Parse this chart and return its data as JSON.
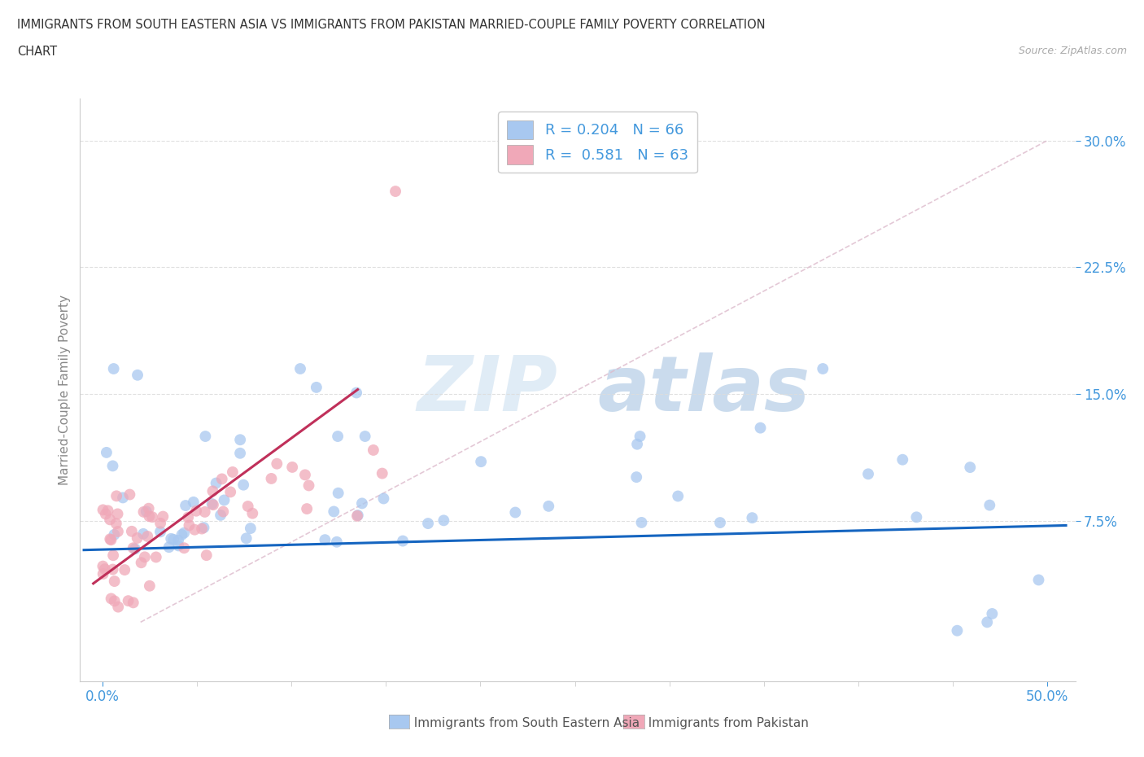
{
  "title_line1": "IMMIGRANTS FROM SOUTH EASTERN ASIA VS IMMIGRANTS FROM PAKISTAN MARRIED-COUPLE FAMILY POVERTY CORRELATION",
  "title_line2": "CHART",
  "source": "Source: ZipAtlas.com",
  "ylabel": "Married-Couple Family Poverty",
  "xlim": [
    0.0,
    0.5
  ],
  "ylim": [
    0.0,
    0.32
  ],
  "yticks": [
    0.075,
    0.15,
    0.225,
    0.3
  ],
  "yticklabels": [
    "7.5%",
    "15.0%",
    "22.5%",
    "30.0%"
  ],
  "xtick_positions": [
    0.0,
    0.5
  ],
  "xticklabels": [
    "0.0%",
    "50.0%"
  ],
  "blue_R": 0.204,
  "blue_N": 66,
  "pink_R": 0.581,
  "pink_N": 63,
  "blue_color": "#A8C8F0",
  "pink_color": "#F0A8B8",
  "blue_line_color": "#1565C0",
  "pink_line_color": "#C0305A",
  "diag_line_color": "#DDBBCC",
  "watermark_color": "#D8E8F8",
  "watermark_color2": "#C8D8E8",
  "legend_label_blue": "Immigrants from South Eastern Asia",
  "legend_label_pink": "Immigrants from Pakistan",
  "background_color": "#FFFFFF",
  "grid_color": "#DDDDDD",
  "tick_color": "#4499DD",
  "spine_color": "#CCCCCC",
  "ylabel_color": "#888888",
  "title_color": "#333333",
  "source_color": "#AAAAAA"
}
